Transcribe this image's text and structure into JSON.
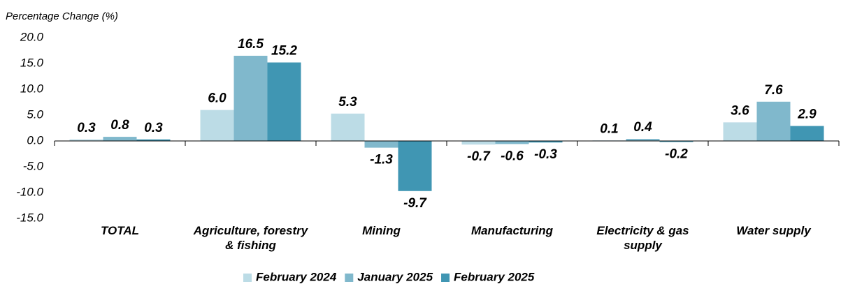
{
  "chart_data": {
    "type": "bar",
    "y_axis_label": "Percentage Change (%)",
    "categories": [
      "TOTAL",
      "Agriculture, forestry & fishing",
      "Mining",
      "Manufacturing",
      "Electricity & gas supply",
      "Water supply"
    ],
    "series": [
      {
        "name": "February 2024",
        "color": "#bcdce6",
        "values": [
          0.3,
          6.0,
          5.3,
          -0.7,
          0.1,
          3.6
        ],
        "value_labels": [
          "0.3",
          "6.0",
          "5.3",
          "-0.7",
          "0.1",
          "3.6"
        ]
      },
      {
        "name": "January 2025",
        "color": "#80b8cc",
        "values": [
          0.8,
          16.5,
          -1.3,
          -0.6,
          0.4,
          7.6
        ],
        "value_labels": [
          "0.8",
          "16.5",
          "-1.3",
          "-0.6",
          "0.4",
          "7.6"
        ]
      },
      {
        "name": "February 2025",
        "color": "#4096b3",
        "values": [
          0.3,
          15.2,
          -9.7,
          -0.3,
          -0.2,
          2.9
        ],
        "value_labels": [
          "0.3",
          "15.2",
          "-9.7",
          "-0.3",
          "-0.2",
          "2.9"
        ]
      }
    ],
    "ylim": [
      -15,
      20
    ],
    "yticks": [
      {
        "value": -15,
        "label": "-15.0"
      },
      {
        "value": -10,
        "label": "-10.0"
      },
      {
        "value": -5,
        "label": "-5.0"
      },
      {
        "value": 0,
        "label": "0.0"
      },
      {
        "value": 5,
        "label": "5.0"
      },
      {
        "value": 10,
        "label": "10.0"
      },
      {
        "value": 15,
        "label": "15.0"
      },
      {
        "value": 20,
        "label": "20.0"
      }
    ],
    "grid": false,
    "legend": "bottom"
  }
}
